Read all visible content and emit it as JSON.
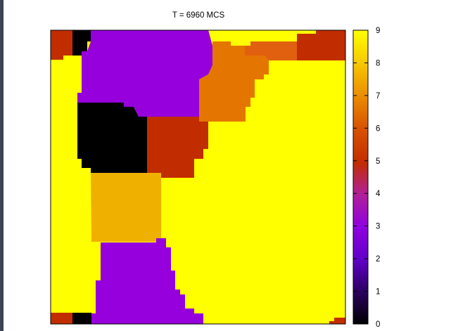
{
  "chart_data": {
    "type": "heatmap",
    "title": "T = 6960 MCS",
    "xlabel": "",
    "ylabel": "",
    "grid": false,
    "colorbar": {
      "min": 0,
      "max": 9,
      "ticks": [
        "0",
        "1",
        "2",
        "3",
        "4",
        "5",
        "6",
        "7",
        "8",
        "9"
      ],
      "palette": "gnuplot (black-purple-red-orange-yellow)"
    },
    "grain_spin_values": [
      {
        "spin": 9,
        "color": "#ffff00"
      },
      {
        "spin": 3,
        "color": "#9500dd"
      },
      {
        "spin": 0,
        "color": "#000000"
      },
      {
        "spin": 5,
        "color": "#c22d00"
      },
      {
        "spin": 6,
        "color": "#e1600f"
      },
      {
        "spin": 7,
        "color": "#e47600"
      },
      {
        "spin": 8,
        "color": "#f0b000"
      }
    ],
    "grid_size": [
      42,
      42
    ],
    "grains": [
      {
        "name": "background",
        "spin": 9
      },
      {
        "name": "grain-top-left-red",
        "spin": 5
      },
      {
        "name": "grain-top-left-black",
        "spin": 0
      },
      {
        "name": "grain-top-purple",
        "spin": 3
      },
      {
        "name": "grain-center-black",
        "spin": 0
      },
      {
        "name": "grain-center-red",
        "spin": 5
      },
      {
        "name": "grain-orange-amber",
        "spin": 8
      },
      {
        "name": "grain-top-right-orange",
        "spin": 7
      },
      {
        "name": "grain-top-right-orange-dark",
        "spin": 6
      },
      {
        "name": "grain-top-right-red",
        "spin": 5
      },
      {
        "name": "grain-bottom-purple",
        "spin": 3
      },
      {
        "name": "grain-bottom-left-red",
        "spin": 5
      },
      {
        "name": "grain-bottom-left-black",
        "spin": 0
      },
      {
        "name": "grain-bottom-right-red",
        "spin": 5
      }
    ]
  }
}
